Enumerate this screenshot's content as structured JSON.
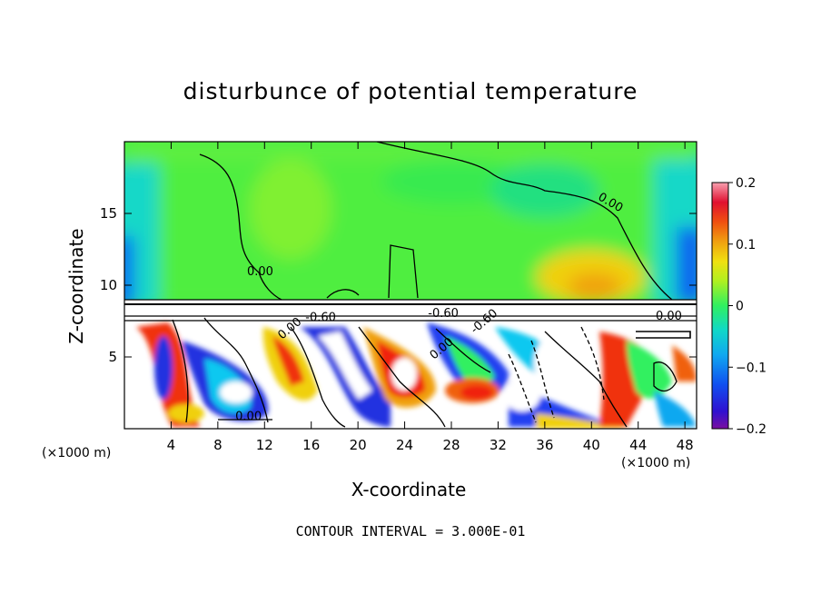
{
  "chart_data": {
    "type": "heatmap",
    "title": "disturbunce of potential temperature",
    "xlabel": "X-coordinate",
    "ylabel": "Z-coordinate",
    "x_unit": "(×1000 m)",
    "x_ticks": [
      4,
      8,
      12,
      16,
      20,
      24,
      28,
      32,
      36,
      40,
      44,
      48
    ],
    "y_ticks": [
      5,
      10,
      15
    ],
    "xlim": [
      0,
      49
    ],
    "ylim": [
      0,
      20
    ],
    "colorbar": {
      "ticks": [
        -0.2,
        -0.1,
        0,
        0.1,
        0.2
      ],
      "tick_labels": [
        "−0.2",
        "−0.1",
        "0",
        "0.1",
        "0.2"
      ],
      "range": [
        -0.2,
        0.2
      ],
      "colors": [
        "#7a0fa0",
        "#2a0fd0",
        "#1060f0",
        "#10a8f0",
        "#10d8d0",
        "#10e8a0",
        "#30f060",
        "#70f030",
        "#c0f020",
        "#f0e010",
        "#f0a010",
        "#f06010",
        "#f02010",
        "#e01040",
        "#f87a90"
      ]
    },
    "contour_labels": [
      "0.00",
      "0.00",
      "0.00",
      "0.00",
      "0.00",
      "-0.60",
      "-0.60",
      "-0.60",
      "0.00"
    ],
    "note": "CONTOUR INTERVAL = 3.000E-01"
  }
}
